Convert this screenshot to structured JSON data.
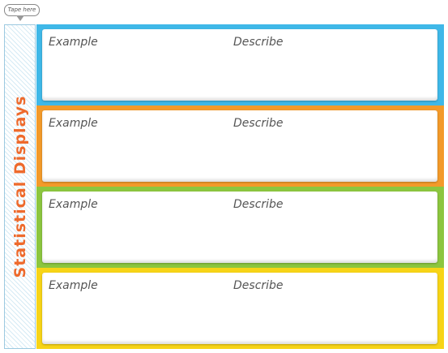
{
  "tape_label": "Tape here",
  "title": "Statistical Displays",
  "panels": [
    {
      "example": "Example",
      "describe": "Describe"
    },
    {
      "example": "Example",
      "describe": "Describe"
    },
    {
      "example": "Example",
      "describe": "Describe"
    },
    {
      "example": "Example",
      "describe": "Describe"
    }
  ]
}
